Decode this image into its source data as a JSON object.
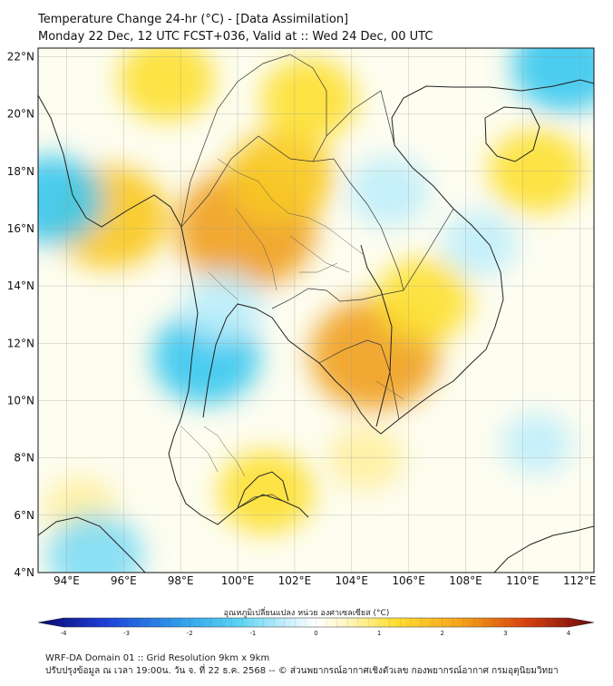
{
  "header": {
    "line1": "Temperature Change 24-hr (°C) - [Data Assimilation]",
    "line2": "Monday 22 Dec, 12 UTC FCST+036, Valid at :: Wed 24 Dec, 00 UTC"
  },
  "map": {
    "lat_labels": [
      "22°N",
      "20°N",
      "18°N",
      "16°N",
      "14°N",
      "12°N",
      "10°N",
      "8°N",
      "6°N",
      "4°N"
    ],
    "lon_labels": [
      "94°E",
      "96°E",
      "98°E",
      "100°E",
      "102°E",
      "104°E",
      "106°E",
      "108°E",
      "110°E",
      "112°E"
    ],
    "lat_range": [
      4,
      22.3
    ],
    "lon_range": [
      93,
      112.5
    ]
  },
  "colorbar": {
    "title": "อุณหภูมิเปลี่ยนแปลง หน่วย องศาเซลเซียส (°C)",
    "ticks": [
      "-4",
      "-3",
      "-2",
      "-1",
      "0",
      "1",
      "2",
      "3",
      "4"
    ],
    "range": [
      -4,
      4
    ],
    "colors": [
      "#08086b",
      "#1f3fd8",
      "#2f9be8",
      "#5ad3f5",
      "#c9f0fb",
      "#ffffff",
      "#fff6b8",
      "#ffe033",
      "#f5a41a",
      "#d64010",
      "#6b0a0a"
    ]
  },
  "field_blobs": [
    {
      "lon": 100.3,
      "lat": 16.0,
      "value": 1.8
    },
    {
      "lon": 101.5,
      "lat": 17.8,
      "value": 1.2
    },
    {
      "lon": 104.8,
      "lat": 11.6,
      "value": 1.6
    },
    {
      "lon": 95.5,
      "lat": 16.4,
      "value": 1.4
    },
    {
      "lon": 97.5,
      "lat": 21.2,
      "value": 1.0
    },
    {
      "lon": 102.5,
      "lat": 20.5,
      "value": 1.0
    },
    {
      "lon": 106.5,
      "lat": 13.5,
      "value": 1.0
    },
    {
      "lon": 101.0,
      "lat": 6.8,
      "value": 1.0
    },
    {
      "lon": 110.5,
      "lat": 18.0,
      "value": 1.0
    },
    {
      "lon": 104.5,
      "lat": 8.0,
      "value": 0.6
    },
    {
      "lon": 94.5,
      "lat": 6.2,
      "value": 0.6
    },
    {
      "lon": 98.9,
      "lat": 11.5,
      "value": -1.2
    },
    {
      "lon": 93.5,
      "lat": 17.0,
      "value": -1.1
    },
    {
      "lon": 111.5,
      "lat": 21.7,
      "value": -1.2
    },
    {
      "lon": 105.3,
      "lat": 17.3,
      "value": -0.7
    },
    {
      "lon": 108.5,
      "lat": 15.5,
      "value": -0.6
    },
    {
      "lon": 95.0,
      "lat": 4.6,
      "value": -1.0
    },
    {
      "lon": 99.5,
      "lat": 13.3,
      "value": -0.7
    },
    {
      "lon": 110.5,
      "lat": 8.5,
      "value": -0.5
    }
  ],
  "footer": {
    "line1": "WRF-DA Domain 01 :: Grid Resolution 9km x 9km",
    "line2": "ปรับปรุงข้อมูล ณ เวลา 19:00น. วัน จ. ที่ 22 ธ.ค. 2568 -- © ส่วนพยากรณ์อากาศเชิงตัวเลข กองพยากรณ์อากาศ กรมอุตุนิยมวิทยา"
  }
}
